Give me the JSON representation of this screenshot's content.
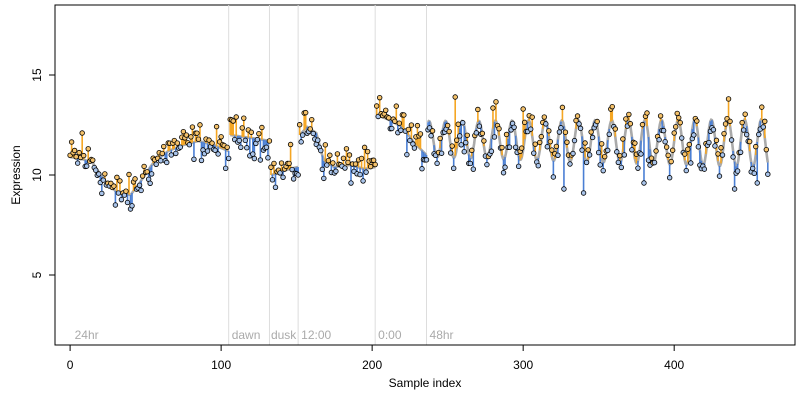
{
  "chart_data": {
    "type": "scatter",
    "title": "",
    "xlabel": "Sample index",
    "ylabel": "Expression",
    "xlim": [
      -10,
      480
    ],
    "ylim": [
      1.5,
      18.5
    ],
    "x_ticks": [
      0,
      100,
      200,
      300,
      400
    ],
    "y_ticks": [
      5,
      10,
      15
    ],
    "grid": false,
    "legend": "none",
    "colors": {
      "trend_line": "#aaaaaa",
      "above_residual": "#f5a623",
      "below_residual": "#4a7fd4",
      "point_fill_high": "#f5c26b",
      "point_fill_low": "#a9c4ea",
      "divider": "#dddddd",
      "region_label": "#aaaaaa"
    },
    "section_dividers": [
      105,
      132,
      151,
      202,
      236
    ],
    "section_labels": [
      {
        "text": "24hr",
        "x": 3
      },
      {
        "text": "dawn",
        "x": 107
      },
      {
        "text": "dusk",
        "x": 133
      },
      {
        "text": "12:00",
        "x": 153
      },
      {
        "text": "0:00",
        "x": 204
      },
      {
        "text": "48hr",
        "x": 238
      }
    ],
    "trend_segments": [
      {
        "x": [
          0,
          8,
          15,
          22,
          30,
          35,
          40,
          45,
          55,
          65,
          75,
          85,
          95,
          105
        ],
        "y": [
          10.9,
          10.8,
          10.6,
          9.8,
          9.2,
          9.1,
          9.0,
          9.5,
          10.6,
          11.2,
          11.5,
          11.7,
          11.5,
          11.2
        ]
      },
      {
        "x": [
          106,
          115,
          125,
          132
        ],
        "y": [
          12.0,
          11.9,
          11.8,
          11.7
        ]
      },
      {
        "x": [
          133,
          138,
          145,
          151
        ],
        "y": [
          10.0,
          10.1,
          10.3,
          10.4
        ]
      },
      {
        "x": [
          152,
          157,
          163,
          168,
          175,
          185,
          195,
          202
        ],
        "y": [
          12.0,
          12.4,
          12.1,
          10.7,
          10.4,
          10.5,
          10.3,
          10.4
        ]
      },
      {
        "x": [
          203,
          210,
          220,
          228,
          236
        ],
        "y": [
          13.0,
          12.8,
          12.4,
          11.6,
          11.0
        ]
      }
    ],
    "oscillation": {
      "x_start": 237,
      "x_end": 462,
      "mean": 11.8,
      "amplitude_start": 0.9,
      "amplitude_end": 1.2,
      "period": 11,
      "mean_drift": -0.001
    },
    "highlight_points": [
      {
        "x": 8,
        "y": 12.1
      },
      {
        "x": 30,
        "y": 8.5
      },
      {
        "x": 40,
        "y": 8.3
      },
      {
        "x": 65,
        "y": 11.6
      },
      {
        "x": 110,
        "y": 12.9
      },
      {
        "x": 155,
        "y": 13.1
      },
      {
        "x": 175,
        "y": 10.1
      },
      {
        "x": 210,
        "y": 12.9
      },
      {
        "x": 255,
        "y": 13.9
      },
      {
        "x": 300,
        "y": 13.3
      },
      {
        "x": 320,
        "y": 9.9
      },
      {
        "x": 327,
        "y": 9.3
      },
      {
        "x": 340,
        "y": 9.1
      },
      {
        "x": 380,
        "y": 9.6
      },
      {
        "x": 400,
        "y": 12.1
      },
      {
        "x": 415,
        "y": 12.7
      },
      {
        "x": 440,
        "y": 9.3
      },
      {
        "x": 455,
        "y": 9.6
      }
    ]
  }
}
